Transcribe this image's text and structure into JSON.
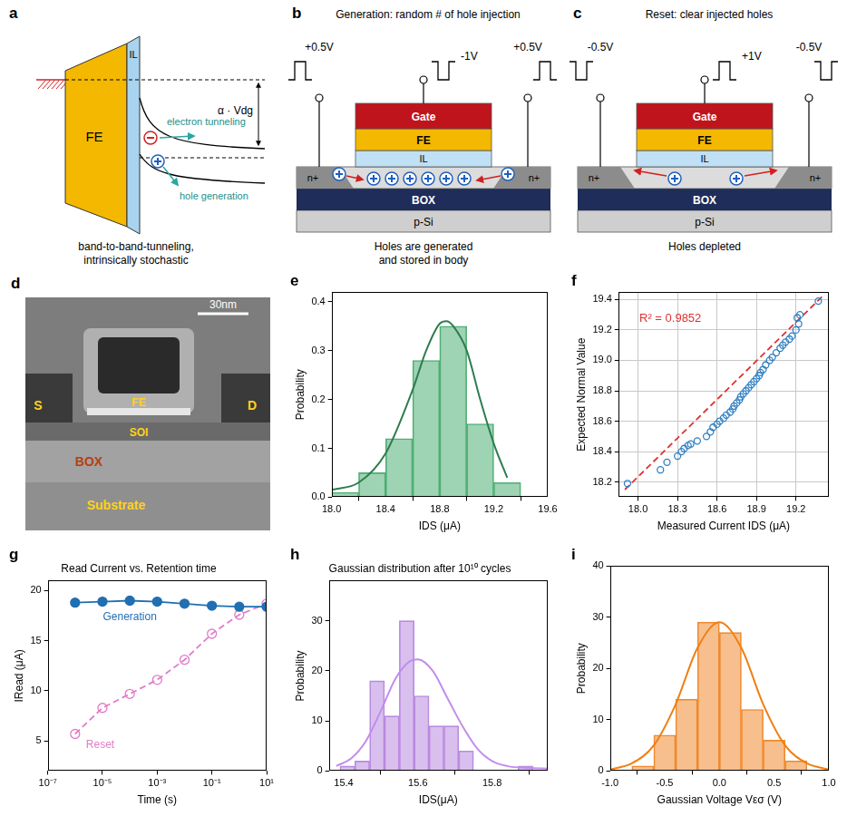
{
  "chart_data": [
    {
      "panel": "e",
      "type": "histogram",
      "x_label": "IDS (μA)",
      "y_label": "Probability",
      "bins": [
        18.0,
        18.2,
        18.4,
        18.6,
        18.8,
        19.0,
        19.2,
        19.4
      ],
      "series": [
        {
          "type": "bar",
          "color": "#4fae74",
          "values": [
            0.01,
            0.05,
            0.12,
            0.28,
            0.35,
            0.15,
            0.03
          ]
        },
        {
          "type": "line",
          "color": "#2e7d4f",
          "x": [
            18.0,
            18.2,
            18.4,
            18.6,
            18.7,
            18.8,
            18.85,
            18.9,
            19.0,
            19.1,
            19.2,
            19.3
          ],
          "values": [
            0.015,
            0.03,
            0.09,
            0.22,
            0.3,
            0.355,
            0.36,
            0.35,
            0.3,
            0.2,
            0.11,
            0.04
          ]
        }
      ],
      "xlim": [
        18.0,
        19.6
      ],
      "xticks": [
        {
          "value": 18.0,
          "label": "18.0"
        },
        18.4,
        18.8,
        19.2,
        19.6
      ],
      "ylim": [
        0,
        0.42
      ],
      "yticks": [
        {
          "value": 0,
          "label": "0.0"
        },
        0.1,
        0.2,
        0.3,
        0.4
      ],
      "grid": false
    },
    {
      "panel": "f",
      "type": "scatter",
      "x_label": "Measured Current IDS (μA)",
      "y_label": "Expected Normal Value",
      "annotations": [
        "R² = 0.9852"
      ],
      "series": [
        {
          "type": "scatter",
          "color": "#2f7fc1",
          "marker": "circle_open",
          "x": [
            17.92,
            18.17,
            18.22,
            18.3,
            18.33,
            18.35,
            18.38,
            18.4,
            18.45,
            18.52,
            18.55,
            18.57,
            18.6,
            18.62,
            18.65,
            18.67,
            18.7,
            18.72,
            18.73,
            18.75,
            18.77,
            18.78,
            18.8,
            18.82,
            18.84,
            18.86,
            18.88,
            18.9,
            18.92,
            18.93,
            18.95,
            18.97,
            19.0,
            19.02,
            19.05,
            19.08,
            19.1,
            19.12,
            19.15,
            19.17,
            19.2,
            19.22,
            19.21,
            19.23,
            19.37
          ],
          "values": [
            18.19,
            18.28,
            18.33,
            18.37,
            18.4,
            18.42,
            18.44,
            18.45,
            18.47,
            18.5,
            18.53,
            18.56,
            18.58,
            18.6,
            18.62,
            18.64,
            18.66,
            18.68,
            18.7,
            18.72,
            18.74,
            18.76,
            18.78,
            18.8,
            18.82,
            18.84,
            18.86,
            18.88,
            18.9,
            18.92,
            18.94,
            18.97,
            19.0,
            19.02,
            19.05,
            19.08,
            19.1,
            19.12,
            19.14,
            19.16,
            19.2,
            19.24,
            19.28,
            19.3,
            19.39
          ]
        },
        {
          "type": "line",
          "color": "#e03030",
          "line_style": "dashed",
          "x": [
            17.9,
            19.4
          ],
          "values": [
            18.15,
            19.42
          ]
        }
      ],
      "xlim": [
        17.85,
        19.45
      ],
      "xticks": [
        {
          "value": 18.0,
          "label": "18.0"
        },
        18.3,
        18.6,
        18.9,
        19.2
      ],
      "ylim": [
        18.1,
        19.45
      ],
      "yticks": [
        18.2,
        18.4,
        18.6,
        18.8,
        {
          "value": 19.0,
          "label": "19.0"
        },
        19.2,
        19.4
      ],
      "grid": true
    },
    {
      "panel": "g",
      "type": "line",
      "title": "Read Current vs. Retention time",
      "x_label": "Time (s)",
      "y_label": "IRead (μA)",
      "log": "x",
      "series": [
        {
          "name": "Generation",
          "color": "#1f6fb2",
          "marker": "circle",
          "line_style": "solid",
          "x": [
            1e-06,
            1e-05,
            0.0001,
            0.001,
            0.01,
            0.1,
            1,
            10
          ],
          "values": [
            18.8,
            18.9,
            19.0,
            18.9,
            18.7,
            18.5,
            18.4,
            18.4
          ]
        },
        {
          "name": "Reset",
          "color": "#e27bc8",
          "marker": "circle_open",
          "line_style": "dashed",
          "x": [
            1e-06,
            1e-05,
            0.0001,
            0.001,
            0.01,
            0.1,
            1,
            10
          ],
          "values": [
            5.7,
            8.3,
            9.7,
            11.1,
            13.1,
            15.7,
            17.6,
            18.7
          ]
        }
      ],
      "xlim": [
        1e-07,
        10
      ],
      "xticks": [
        {
          "value": 1e-07,
          "label": "10⁻⁷"
        },
        {
          "value": 1e-05,
          "label": "10⁻⁵"
        },
        {
          "value": 0.001,
          "label": "10⁻³"
        },
        {
          "value": 0.1,
          "label": "10⁻¹"
        },
        {
          "value": 10,
          "label": "10¹"
        }
      ],
      "ylim": [
        2,
        21
      ],
      "yticks": [
        5,
        10,
        15,
        20
      ],
      "grid": false
    },
    {
      "panel": "h",
      "type": "histogram",
      "title": "Gaussian distribution after 10¹⁰ cycles",
      "x_label": "IDS(μA)",
      "y_label": "Probability",
      "bins": [
        15.39,
        15.43,
        15.47,
        15.51,
        15.55,
        15.59,
        15.63,
        15.67,
        15.71,
        15.75,
        15.79,
        15.83,
        15.87,
        15.91
      ],
      "series": [
        {
          "type": "bar",
          "color": "#b98be0",
          "values": [
            1,
            2,
            18,
            11,
            30,
            15,
            9,
            9,
            4,
            0,
            0,
            0,
            1
          ]
        },
        {
          "type": "line",
          "color": "#c38ceb",
          "x": [
            15.38,
            15.42,
            15.46,
            15.5,
            15.54,
            15.58,
            15.6,
            15.64,
            15.68,
            15.72,
            15.76,
            15.8,
            15.84,
            15.9,
            15.95
          ],
          "values": [
            1.0,
            2.5,
            6,
            12,
            18.5,
            22,
            22.3,
            20,
            14.5,
            9,
            4.5,
            2,
            1,
            0.6,
            0.5
          ]
        }
      ],
      "xlim": [
        15.36,
        15.95
      ],
      "xticks": [
        15.4,
        15.6,
        15.8
      ],
      "ylim": [
        0,
        38
      ],
      "yticks": [
        0,
        10,
        20,
        30
      ],
      "grid": false
    },
    {
      "panel": "i",
      "type": "histogram",
      "x_label": "Gaussian Voltage Vεσ (V)",
      "y_label": "Probability",
      "bins": [
        -0.8,
        -0.6,
        -0.4,
        -0.2,
        0.0,
        0.2,
        0.4,
        0.6,
        0.8
      ],
      "series": [
        {
          "type": "bar",
          "color": "#f08a30",
          "values": [
            1,
            7,
            14,
            29,
            27,
            12,
            6,
            2
          ]
        },
        {
          "type": "line",
          "color": "#f07f10",
          "x": [
            -1.0,
            -0.8,
            -0.6,
            -0.4,
            -0.2,
            0.0,
            0.2,
            0.4,
            0.6,
            0.8,
            1.0
          ],
          "values": [
            0.3,
            1.5,
            5,
            13,
            24,
            29,
            24,
            13,
            5,
            1.5,
            0.3
          ]
        }
      ],
      "xlim": [
        -1.0,
        1.0
      ],
      "xticks": [
        {
          "value": -1.0,
          "label": "-1.0"
        },
        -0.5,
        {
          "value": 0,
          "label": "0.0"
        },
        0.5,
        {
          "value": 1.0,
          "label": "1.0"
        }
      ],
      "ylim": [
        0,
        40
      ],
      "yticks": [
        0,
        10,
        20,
        30,
        40
      ],
      "grid": false
    }
  ],
  "diagrams": {
    "a": {
      "panel": "a",
      "fe": "FE",
      "il": "IL",
      "electron": "electron tunneling",
      "hole": "hole generation",
      "voltage": "α · Vdg",
      "caption": [
        "band-to-band-tunneling,",
        "intrinsically stochastic"
      ]
    },
    "b": {
      "panel": "b",
      "title": "Generation: random # of hole injection",
      "source_pulse": "+0.5V",
      "gate_pulse": "-1V",
      "drain_pulse": "+0.5V",
      "gate": "Gate",
      "fe": "FE",
      "il": "IL",
      "source": "n+",
      "drain": "n+",
      "box": "BOX",
      "substrate": "p-Si",
      "caption": [
        "Holes are generated",
        "and stored in body"
      ]
    },
    "c": {
      "panel": "c",
      "title": "Reset: clear injected holes",
      "source_pulse": "-0.5V",
      "gate_pulse": "+1V",
      "drain_pulse": "-0.5V",
      "gate": "Gate",
      "fe": "FE",
      "il": "IL",
      "source": "n+",
      "drain": "n+",
      "box": "BOX",
      "substrate": "p-Si",
      "caption": [
        "Holes depleted"
      ]
    },
    "d": {
      "panel": "d",
      "scale_bar": "30nm",
      "source": "S",
      "drain": "D",
      "fe": "FE",
      "soi": "SOI",
      "box": "BOX",
      "substrate": "Substrate"
    }
  }
}
